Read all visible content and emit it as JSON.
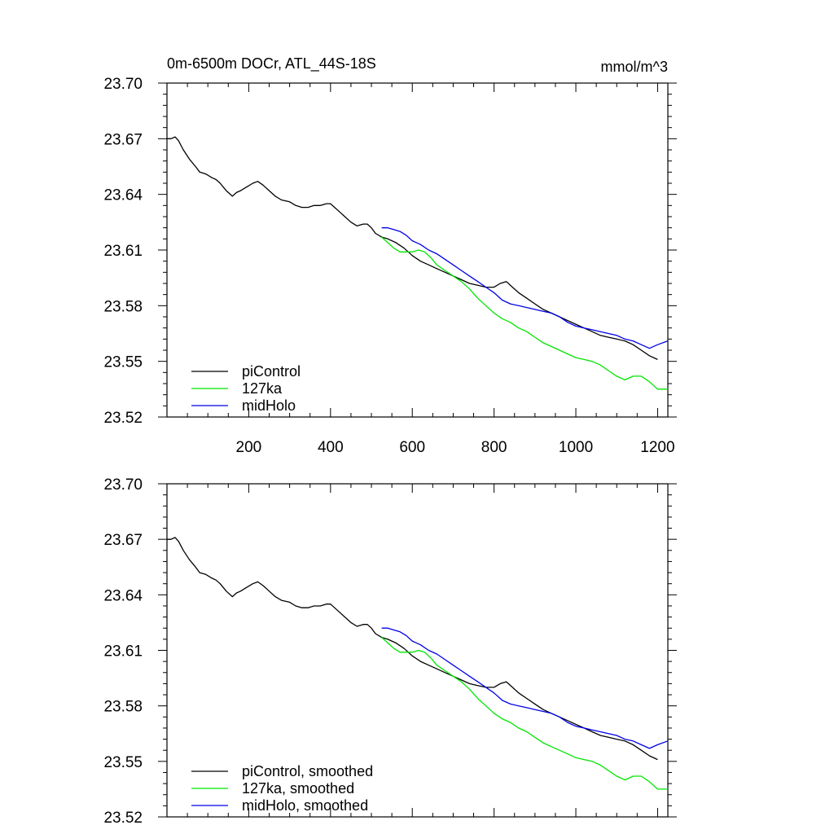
{
  "header": {
    "title": "0m-6500m DOCr, ATL_44S-18S",
    "units": "mmol/m^3"
  },
  "chart_data": [
    {
      "type": "line",
      "title": "0m-6500m DOCr, ATL_44S-18S",
      "units": "mmol/m^3",
      "xlim": [
        0,
        1225
      ],
      "ylim": [
        23.52,
        23.7
      ],
      "xticks": [
        200,
        400,
        600,
        800,
        1000,
        1200
      ],
      "xticklabels": [
        "200",
        "400",
        "600",
        "800",
        "1000",
        "1200"
      ],
      "show_xticklabels": true,
      "yticks": [
        23.52,
        23.55,
        23.58,
        23.61,
        23.64,
        23.67,
        23.7
      ],
      "yticklabels": [
        "23.52",
        "23.55",
        "23.58",
        "23.61",
        "23.64",
        "23.67",
        "23.70"
      ],
      "legend_position": "bottom-left",
      "series": [
        {
          "name": "piControl",
          "color": "#000000",
          "x": [
            1,
            10,
            20,
            28,
            40,
            55,
            70,
            80,
            95,
            110,
            120,
            130,
            145,
            160,
            170,
            180,
            195,
            210,
            222,
            235,
            250,
            265,
            280,
            300,
            315,
            330,
            345,
            360,
            375,
            390,
            400,
            410,
            420,
            435,
            450,
            465,
            480,
            490,
            500,
            510,
            525,
            540,
            560,
            580,
            600,
            620,
            640,
            660,
            680,
            700,
            720,
            740,
            760,
            780,
            800,
            815,
            830,
            845,
            860,
            880,
            900,
            920,
            940,
            960,
            980,
            1000,
            1020,
            1040,
            1060,
            1080,
            1100,
            1120,
            1140,
            1160,
            1180,
            1200
          ],
          "values": [
            23.67,
            23.67,
            23.671,
            23.669,
            23.664,
            23.659,
            23.655,
            23.652,
            23.651,
            23.649,
            23.648,
            23.646,
            23.642,
            23.639,
            23.641,
            23.642,
            23.644,
            23.646,
            23.647,
            23.645,
            23.642,
            23.639,
            23.637,
            23.636,
            23.634,
            23.633,
            23.633,
            23.634,
            23.634,
            23.635,
            23.635,
            23.633,
            23.631,
            23.628,
            23.625,
            23.623,
            23.624,
            23.624,
            23.622,
            23.619,
            23.617,
            23.616,
            23.614,
            23.611,
            23.607,
            23.604,
            23.602,
            23.6,
            23.598,
            23.596,
            23.594,
            23.592,
            23.591,
            23.59,
            23.59,
            23.592,
            23.593,
            23.59,
            23.587,
            23.584,
            23.581,
            23.578,
            23.576,
            23.574,
            23.572,
            23.57,
            23.568,
            23.566,
            23.564,
            23.563,
            23.562,
            23.561,
            23.559,
            23.556,
            23.553,
            23.551
          ]
        },
        {
          "name": "127ka",
          "color": "#00e600",
          "x": [
            525,
            540,
            555,
            570,
            585,
            600,
            615,
            630,
            645,
            660,
            680,
            700,
            720,
            740,
            760,
            780,
            800,
            820,
            840,
            860,
            880,
            900,
            920,
            940,
            960,
            980,
            1000,
            1020,
            1040,
            1060,
            1080,
            1100,
            1120,
            1140,
            1160,
            1180,
            1200,
            1225
          ],
          "values": [
            23.617,
            23.614,
            23.611,
            23.609,
            23.609,
            23.609,
            23.61,
            23.609,
            23.606,
            23.602,
            23.599,
            23.596,
            23.593,
            23.589,
            23.584,
            23.58,
            23.576,
            23.573,
            23.571,
            23.568,
            23.566,
            23.563,
            23.56,
            23.558,
            23.556,
            23.554,
            23.552,
            23.551,
            23.55,
            23.548,
            23.545,
            23.542,
            23.54,
            23.542,
            23.542,
            23.539,
            23.535,
            23.535
          ]
        },
        {
          "name": "midHolo",
          "color": "#0000e6",
          "x": [
            525,
            540,
            555,
            570,
            585,
            600,
            620,
            640,
            660,
            680,
            700,
            720,
            740,
            760,
            780,
            800,
            820,
            840,
            860,
            880,
            900,
            920,
            940,
            960,
            980,
            1000,
            1020,
            1040,
            1060,
            1080,
            1100,
            1120,
            1140,
            1160,
            1180,
            1200,
            1225
          ],
          "values": [
            23.622,
            23.622,
            23.621,
            23.62,
            23.618,
            23.615,
            23.613,
            23.61,
            23.608,
            23.605,
            23.602,
            23.599,
            23.596,
            23.593,
            23.59,
            23.587,
            23.583,
            23.581,
            23.58,
            23.579,
            23.578,
            23.577,
            23.576,
            23.574,
            23.571,
            23.569,
            23.568,
            23.567,
            23.566,
            23.565,
            23.564,
            23.562,
            23.561,
            23.559,
            23.557,
            23.559,
            23.561
          ]
        }
      ]
    },
    {
      "type": "line",
      "title": "",
      "units": "",
      "xlim": [
        0,
        1225
      ],
      "ylim": [
        23.52,
        23.7
      ],
      "xticks": [
        200,
        400,
        600,
        800,
        1000,
        1200
      ],
      "xticklabels": [],
      "show_xticklabels": false,
      "yticks": [
        23.52,
        23.55,
        23.58,
        23.61,
        23.64,
        23.67,
        23.7
      ],
      "yticklabels": [
        "23.52",
        "23.55",
        "23.58",
        "23.61",
        "23.64",
        "23.67",
        "23.70"
      ],
      "legend_position": "bottom-left",
      "series": [
        {
          "name": "piControl, smoothed",
          "color": "#000000",
          "x": [
            1,
            10,
            20,
            28,
            40,
            55,
            70,
            80,
            95,
            110,
            120,
            130,
            145,
            160,
            170,
            180,
            195,
            210,
            222,
            235,
            250,
            265,
            280,
            300,
            315,
            330,
            345,
            360,
            375,
            390,
            400,
            410,
            420,
            435,
            450,
            465,
            480,
            490,
            500,
            510,
            525,
            540,
            560,
            580,
            600,
            620,
            640,
            660,
            680,
            700,
            720,
            740,
            760,
            780,
            800,
            815,
            830,
            845,
            860,
            880,
            900,
            920,
            940,
            960,
            980,
            1000,
            1020,
            1040,
            1060,
            1080,
            1100,
            1120,
            1140,
            1160,
            1180,
            1200
          ],
          "values": [
            23.67,
            23.67,
            23.671,
            23.669,
            23.664,
            23.659,
            23.655,
            23.652,
            23.651,
            23.649,
            23.648,
            23.646,
            23.642,
            23.639,
            23.641,
            23.642,
            23.644,
            23.646,
            23.647,
            23.645,
            23.642,
            23.639,
            23.637,
            23.636,
            23.634,
            23.633,
            23.633,
            23.634,
            23.634,
            23.635,
            23.635,
            23.633,
            23.631,
            23.628,
            23.625,
            23.623,
            23.624,
            23.624,
            23.622,
            23.619,
            23.617,
            23.616,
            23.614,
            23.611,
            23.607,
            23.604,
            23.602,
            23.6,
            23.598,
            23.596,
            23.594,
            23.592,
            23.591,
            23.59,
            23.59,
            23.592,
            23.593,
            23.59,
            23.587,
            23.584,
            23.581,
            23.578,
            23.576,
            23.574,
            23.572,
            23.57,
            23.568,
            23.566,
            23.564,
            23.563,
            23.562,
            23.561,
            23.559,
            23.556,
            23.553,
            23.551
          ]
        },
        {
          "name": "127ka, smoothed",
          "color": "#00e600",
          "x": [
            525,
            540,
            555,
            570,
            585,
            600,
            615,
            630,
            645,
            660,
            680,
            700,
            720,
            740,
            760,
            780,
            800,
            820,
            840,
            860,
            880,
            900,
            920,
            940,
            960,
            980,
            1000,
            1020,
            1040,
            1060,
            1080,
            1100,
            1120,
            1140,
            1160,
            1180,
            1200,
            1225
          ],
          "values": [
            23.617,
            23.614,
            23.611,
            23.609,
            23.609,
            23.609,
            23.61,
            23.609,
            23.606,
            23.602,
            23.599,
            23.596,
            23.593,
            23.589,
            23.584,
            23.58,
            23.576,
            23.573,
            23.571,
            23.568,
            23.566,
            23.563,
            23.56,
            23.558,
            23.556,
            23.554,
            23.552,
            23.551,
            23.55,
            23.548,
            23.545,
            23.542,
            23.54,
            23.542,
            23.542,
            23.539,
            23.535,
            23.535
          ]
        },
        {
          "name": "midHolo, smoothed",
          "color": "#0000e6",
          "x": [
            525,
            540,
            555,
            570,
            585,
            600,
            620,
            640,
            660,
            680,
            700,
            720,
            740,
            760,
            780,
            800,
            820,
            840,
            860,
            880,
            900,
            920,
            940,
            960,
            980,
            1000,
            1020,
            1040,
            1060,
            1080,
            1100,
            1120,
            1140,
            1160,
            1180,
            1200,
            1225
          ],
          "values": [
            23.622,
            23.622,
            23.621,
            23.62,
            23.618,
            23.615,
            23.613,
            23.61,
            23.608,
            23.605,
            23.602,
            23.599,
            23.596,
            23.593,
            23.59,
            23.587,
            23.583,
            23.581,
            23.58,
            23.579,
            23.578,
            23.577,
            23.576,
            23.574,
            23.571,
            23.569,
            23.568,
            23.567,
            23.566,
            23.565,
            23.564,
            23.562,
            23.561,
            23.559,
            23.557,
            23.559,
            23.561
          ]
        }
      ]
    }
  ]
}
